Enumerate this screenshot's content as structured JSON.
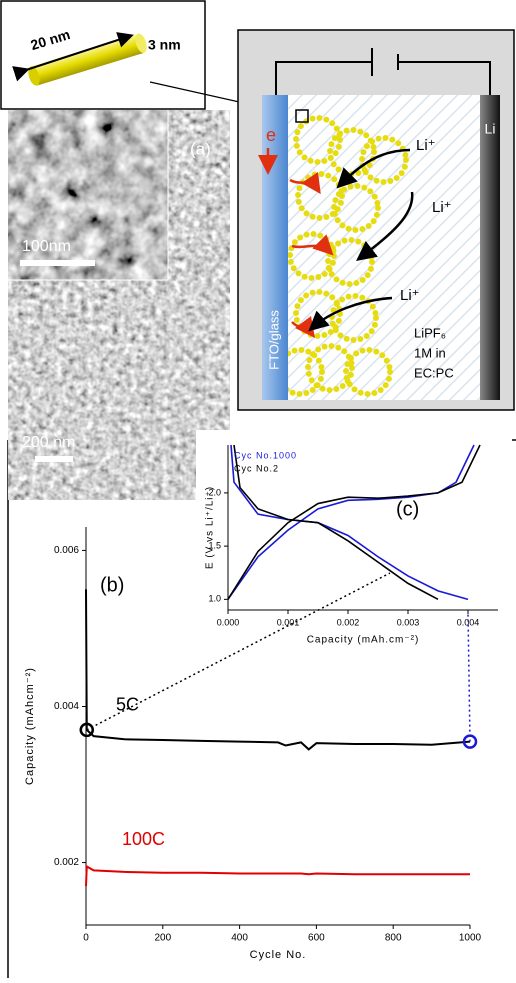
{
  "nanorod": {
    "length": "20 nm",
    "diameter": "3 nm"
  },
  "sem": {
    "panel": "(a)",
    "inset_scale": "100nm",
    "scale": "200 nm"
  },
  "schematic": {
    "electron": "e",
    "ion_1": "Li⁺",
    "ion_2": "Li⁺",
    "ion_3": "Li⁺",
    "anode": "Li",
    "substrate": "FTO/glass",
    "electrolyte_1": "LiPF₆",
    "electrolyte_2": "1M in",
    "electrolyte_3": "EC:PC"
  },
  "chart_data": [
    {
      "type": "line",
      "panel": "(b)",
      "x_label": "Cycle No.",
      "y_label": "Capacity (mAhcm⁻²)",
      "xlim": [
        0,
        1000
      ],
      "xticks": [
        0,
        200,
        400,
        600,
        800,
        1000
      ],
      "ylim": [
        0.0012,
        0.0063
      ],
      "yticks": [
        0.002,
        0.004,
        0.006
      ],
      "x": [
        0,
        2,
        20,
        100,
        200,
        300,
        400,
        500,
        520,
        560,
        580,
        600,
        700,
        800,
        900,
        1000
      ],
      "series": [
        {
          "name": "5C",
          "color": "#000000",
          "values": [
            0.0055,
            0.0037,
            0.00362,
            0.00358,
            0.00357,
            0.00356,
            0.00355,
            0.00354,
            0.0035,
            0.00354,
            0.00345,
            0.00353,
            0.00352,
            0.00352,
            0.00351,
            0.00355
          ]
        },
        {
          "name": "100C",
          "color": "#e00000",
          "values": [
            0.0017,
            0.00195,
            0.0019,
            0.00188,
            0.00187,
            0.00187,
            0.00186,
            0.00186,
            0.00186,
            0.00186,
            0.00185,
            0.00186,
            0.00185,
            0.00185,
            0.00185,
            0.00185
          ]
        }
      ]
    },
    {
      "type": "line",
      "panel": "(c)",
      "x_label": "Capacity (mAh.cm⁻²)",
      "y_label": "E (V vs Li⁺/Li⁺)",
      "legend": "top-left",
      "xlim": [
        0,
        0.0045
      ],
      "xticks": [
        {
          "value": 0,
          "label": "0.000"
        },
        0.001,
        0.002,
        0.003,
        0.004
      ],
      "ylim": [
        0.9,
        2.45
      ],
      "yticks": [
        {
          "value": 1,
          "label": "1.0"
        },
        1.5,
        {
          "value": 2,
          "label": "2.0"
        }
      ],
      "series": [
        {
          "name": "Cyc No.1000",
          "color": "#1a1ad6",
          "x": [
            5e-05,
            0.0001,
            0.0005,
            0.001,
            0.0015,
            0.002,
            0.0025,
            0.003,
            0.0035,
            0.004,
            null,
            0,
            0.0005,
            0.001,
            0.0015,
            0.002,
            0.0025,
            0.003,
            0.0035,
            0.0038,
            0.0041
          ],
          "values": [
            2.45,
            2.1,
            1.8,
            1.75,
            1.72,
            1.6,
            1.4,
            1.22,
            1.08,
            1.0,
            null,
            1.0,
            1.4,
            1.65,
            1.85,
            1.93,
            1.94,
            1.96,
            2.0,
            2.1,
            2.45
          ]
        },
        {
          "name": "Cyc No.2",
          "color": "#000000",
          "x": [
            0.0001,
            0.0002,
            0.0005,
            0.001,
            0.0015,
            0.002,
            0.0025,
            0.003,
            0.0035,
            null,
            0,
            0.0005,
            0.001,
            0.0015,
            0.002,
            0.0025,
            0.003,
            0.0035,
            0.0039,
            0.0042
          ],
          "values": [
            2.45,
            2.05,
            1.85,
            1.75,
            1.72,
            1.55,
            1.35,
            1.15,
            1.0,
            null,
            1.0,
            1.45,
            1.72,
            1.9,
            1.96,
            1.95,
            1.97,
            2.0,
            2.1,
            2.45
          ]
        }
      ]
    }
  ]
}
